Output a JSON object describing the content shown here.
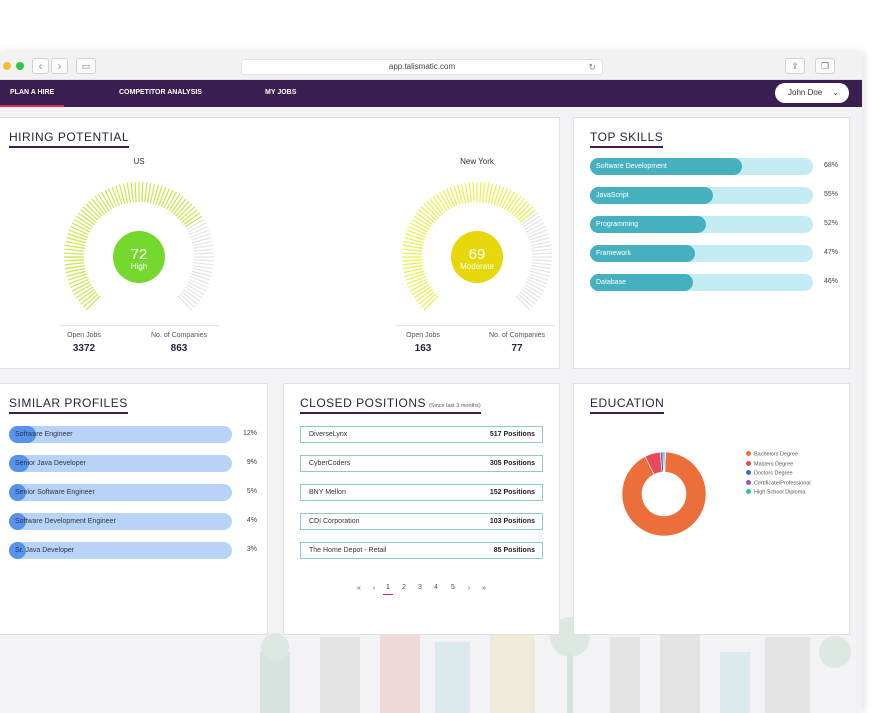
{
  "browser": {
    "url": "app.talismatic.com"
  },
  "nav": {
    "items": [
      {
        "label": "PLAN A HIRE"
      },
      {
        "label": "COMPETITOR ANALYSIS"
      },
      {
        "label": "MY JOBS"
      }
    ],
    "active_index": 0,
    "user": "John Doe"
  },
  "hiring_potential": {
    "title": "HIRING POTENTIAL",
    "gauges": [
      {
        "name": "US",
        "score": "72",
        "level": "High",
        "fraction": 0.72,
        "color": "#c6e84a",
        "center_color": "#74d92c",
        "open_jobs_label": "Open Jobs",
        "open_jobs": "3372",
        "companies_label": "No. of Companies",
        "companies": "863"
      },
      {
        "name": "New York",
        "score": "69",
        "level": "Moderate",
        "fraction": 0.69,
        "color": "#e9ef4a",
        "center_color": "#e6d80a",
        "open_jobs_label": "Open Jobs",
        "open_jobs": "163",
        "companies_label": "No. of Companies",
        "companies": "77"
      }
    ]
  },
  "top_skills": {
    "title": "TOP SKILLS",
    "track_color": "#c4ecf2",
    "fill_color": "#45b1bf",
    "items": [
      {
        "label": "Software Development",
        "pct": "68%",
        "value": 0.68
      },
      {
        "label": "JavaScript",
        "pct": "55%",
        "value": 0.55
      },
      {
        "label": "Programming",
        "pct": "52%",
        "value": 0.52
      },
      {
        "label": "Framework",
        "pct": "47%",
        "value": 0.47
      },
      {
        "label": "Database",
        "pct": "46%",
        "value": 0.46
      }
    ]
  },
  "similar_profiles": {
    "title": "SIMILAR PROFILES",
    "track_color": "#b7d3f8",
    "fill_color": "#5792ec",
    "items": [
      {
        "label": "Software Engineer",
        "pct": "12%",
        "value": 0.12
      },
      {
        "label": "Senior Java Developer",
        "pct": "9%",
        "value": 0.09
      },
      {
        "label": "Senior Software Engineer",
        "pct": "5%",
        "value": 0.05
      },
      {
        "label": "Software Development Engineer",
        "pct": "4%",
        "value": 0.04
      },
      {
        "label": "Sr. Java Developer",
        "pct": "3%",
        "value": 0.03
      }
    ]
  },
  "closed_positions": {
    "title": "CLOSED POSITIONS",
    "subtitle": "(Since last 3 months)",
    "items": [
      {
        "company": "DiverseLynx",
        "count": "517 Positions"
      },
      {
        "company": "CyberCoders",
        "count": "305 Positions"
      },
      {
        "company": "BNY Mellon",
        "count": "152 Positions"
      },
      {
        "company": "CDI Corporation",
        "count": "103 Positions"
      },
      {
        "company": "The Home Depot - Retail",
        "count": "85 Positions"
      }
    ],
    "pagination": {
      "first": "«",
      "prev": "‹",
      "pages": [
        "1",
        "2",
        "3",
        "4",
        "5"
      ],
      "active": "1",
      "next": "›",
      "last": "»"
    }
  },
  "education": {
    "title": "EDUCATION",
    "chart_data": {
      "type": "pie",
      "style": "donut",
      "categories": [
        "Bachelors Degree",
        "Masters Degree",
        "Doctors Degree",
        "Certificate/Professional",
        "High School Diploma"
      ],
      "values": [
        92,
        6,
        1,
        0.5,
        0.5
      ],
      "colors": [
        "#ec6e3a",
        "#e64a5b",
        "#3b6fc8",
        "#8a58bf",
        "#2ebcc1"
      ],
      "legend": "right"
    }
  }
}
